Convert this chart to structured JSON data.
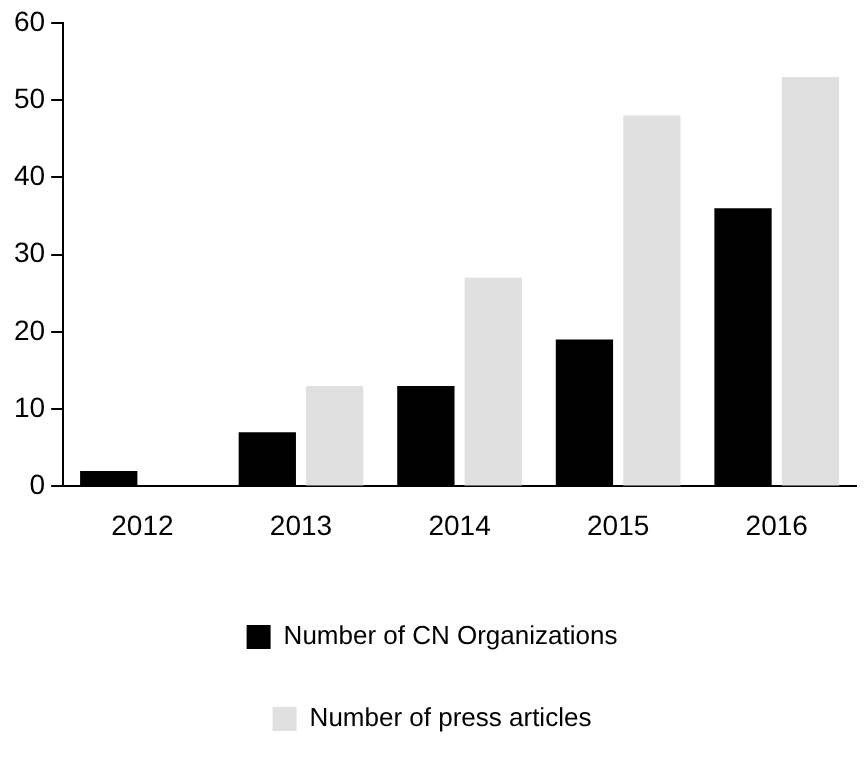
{
  "chart_data": {
    "type": "bar",
    "categories": [
      "2012",
      "2013",
      "2014",
      "2015",
      "2016"
    ],
    "series": [
      {
        "name": "Number of CN Organizations",
        "color": "#000000",
        "values": [
          2,
          7,
          13,
          19,
          36
        ]
      },
      {
        "name": "Number of press articles",
        "color": "#e0e0e0",
        "values": [
          0,
          13,
          27,
          48,
          53
        ]
      }
    ],
    "ylim": [
      0,
      60
    ],
    "yticks": [
      0,
      10,
      20,
      30,
      40,
      50,
      60
    ],
    "grid": false,
    "legend": "bottom"
  }
}
